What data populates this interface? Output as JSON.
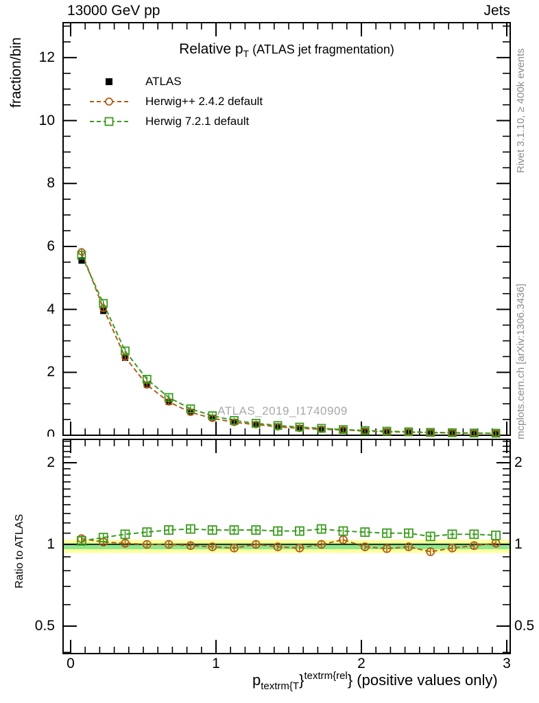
{
  "header": {
    "left": "13000 GeV pp",
    "right": "Jets"
  },
  "side_notes": {
    "top_right": "Rivet 3.1.10, ≥ 400k events",
    "bottom_right": "mcplots.cern.ch [arXiv:1306.3436]"
  },
  "watermark": "ATLAS_2019_I1740909",
  "colors": {
    "atlas": "#000000",
    "herwigpp": "#b05c18",
    "herwig7": "#3a9b1d",
    "band_yellow": "#ffff9e",
    "band_green": "#8de88d",
    "watermark": "#a8a8a8",
    "side_note": "#8c8c8c"
  },
  "legend": [
    {
      "label": "ATLAS",
      "marker": "filled-square",
      "color": "#000000",
      "line": "none"
    },
    {
      "label": "Herwig++ 2.4.2 default",
      "marker": "open-circle",
      "color": "#b05c18",
      "line": "dashed"
    },
    {
      "label": "Herwig 7.2.1 default",
      "marker": "open-square",
      "color": "#3a9b1d",
      "line": "dashed"
    }
  ],
  "xlabel_parts": {
    "base": "p",
    "sub": "textrm{T",
    "brace1": "}",
    "sup": "textrm{rel",
    "brace2": "}",
    "suffix": " (positive values only)"
  },
  "chart_data": [
    {
      "type": "line",
      "panel": "main",
      "title": "Relative pT (ATLAS jet fragmentation)",
      "title_parts": {
        "main": "Relative p",
        "sub": "T",
        "suffix": " (ATLAS jet fragmentation)"
      },
      "ylabel": "fraction/bin",
      "xlim": [
        -0.052,
        3.024
      ],
      "ylim": [
        0,
        13.11
      ],
      "yticks": [
        0,
        2,
        4,
        6,
        8,
        10,
        12
      ],
      "ytick_labels": [
        "0",
        "2",
        "4",
        "6",
        "8",
        "10",
        "12"
      ],
      "xticks": [
        0,
        1,
        2,
        3
      ],
      "xtick_labels": [
        "0",
        "1",
        "2",
        "3"
      ],
      "x_minor_step": 0.1,
      "y_minor_step": 0.5,
      "grid": false,
      "legend_position": "top-left",
      "x": [
        0.075,
        0.225,
        0.375,
        0.525,
        0.675,
        0.825,
        0.975,
        1.125,
        1.275,
        1.425,
        1.575,
        1.725,
        1.875,
        2.025,
        2.175,
        2.325,
        2.475,
        2.625,
        2.775,
        2.925
      ],
      "series": [
        {
          "name": "ATLAS",
          "values": [
            5.55,
            3.95,
            2.46,
            1.6,
            1.06,
            0.74,
            0.55,
            0.42,
            0.34,
            0.28,
            0.23,
            0.19,
            0.16,
            0.135,
            0.115,
            0.1,
            0.085,
            0.075,
            0.065,
            0.06
          ]
        },
        {
          "name": "Herwig++ 2.4.2 default",
          "values": [
            5.83,
            4.03,
            2.48,
            1.6,
            1.06,
            0.73,
            0.54,
            0.41,
            0.34,
            0.27,
            0.22,
            0.19,
            0.17,
            0.13,
            0.11,
            0.1,
            0.08,
            0.073,
            0.064,
            0.061
          ]
        },
        {
          "name": "Herwig 7.2.1 default",
          "values": [
            5.72,
            4.19,
            2.68,
            1.78,
            1.2,
            0.84,
            0.62,
            0.47,
            0.38,
            0.31,
            0.26,
            0.22,
            0.18,
            0.15,
            0.13,
            0.11,
            0.091,
            0.082,
            0.071,
            0.065
          ]
        }
      ]
    },
    {
      "type": "line",
      "panel": "ratio",
      "ylabel": "Ratio to ATLAS",
      "yscale": "log",
      "ylim": [
        0.396,
        2.44
      ],
      "yticks": [
        0.5,
        1,
        2
      ],
      "ytick_labels": [
        "0.5",
        "1",
        "2"
      ],
      "y_minor_ticks": [
        0.4,
        0.6,
        0.7,
        0.8,
        0.9,
        1.1,
        1.2,
        1.3,
        1.4,
        1.5,
        1.6,
        1.7,
        1.8,
        1.9,
        2.1,
        2.2,
        2.3,
        2.4
      ],
      "reference_line": 1.0,
      "band_yellow": [
        0.93,
        1.04
      ],
      "band_green": [
        0.96,
        1.01
      ],
      "x": [
        0.075,
        0.225,
        0.375,
        0.525,
        0.675,
        0.825,
        0.975,
        1.125,
        1.275,
        1.425,
        1.575,
        1.725,
        1.875,
        2.025,
        2.175,
        2.325,
        2.475,
        2.625,
        2.775,
        2.925
      ],
      "series": [
        {
          "name": "Herwig++ 2.4.2 default",
          "values": [
            1.05,
            1.02,
            1.01,
            1.0,
            1.0,
            0.99,
            0.98,
            0.97,
            1.0,
            0.98,
            0.97,
            1.0,
            1.04,
            0.98,
            0.965,
            0.98,
            0.94,
            0.97,
            0.99,
            1.01
          ]
        },
        {
          "name": "Herwig 7.2.1 default",
          "values": [
            1.03,
            1.06,
            1.09,
            1.11,
            1.13,
            1.14,
            1.13,
            1.13,
            1.13,
            1.12,
            1.12,
            1.14,
            1.12,
            1.11,
            1.1,
            1.1,
            1.07,
            1.09,
            1.09,
            1.08
          ]
        }
      ]
    }
  ],
  "xlabel_plain": "p_textrm{T}^textrm{rel}} (positive values only)"
}
